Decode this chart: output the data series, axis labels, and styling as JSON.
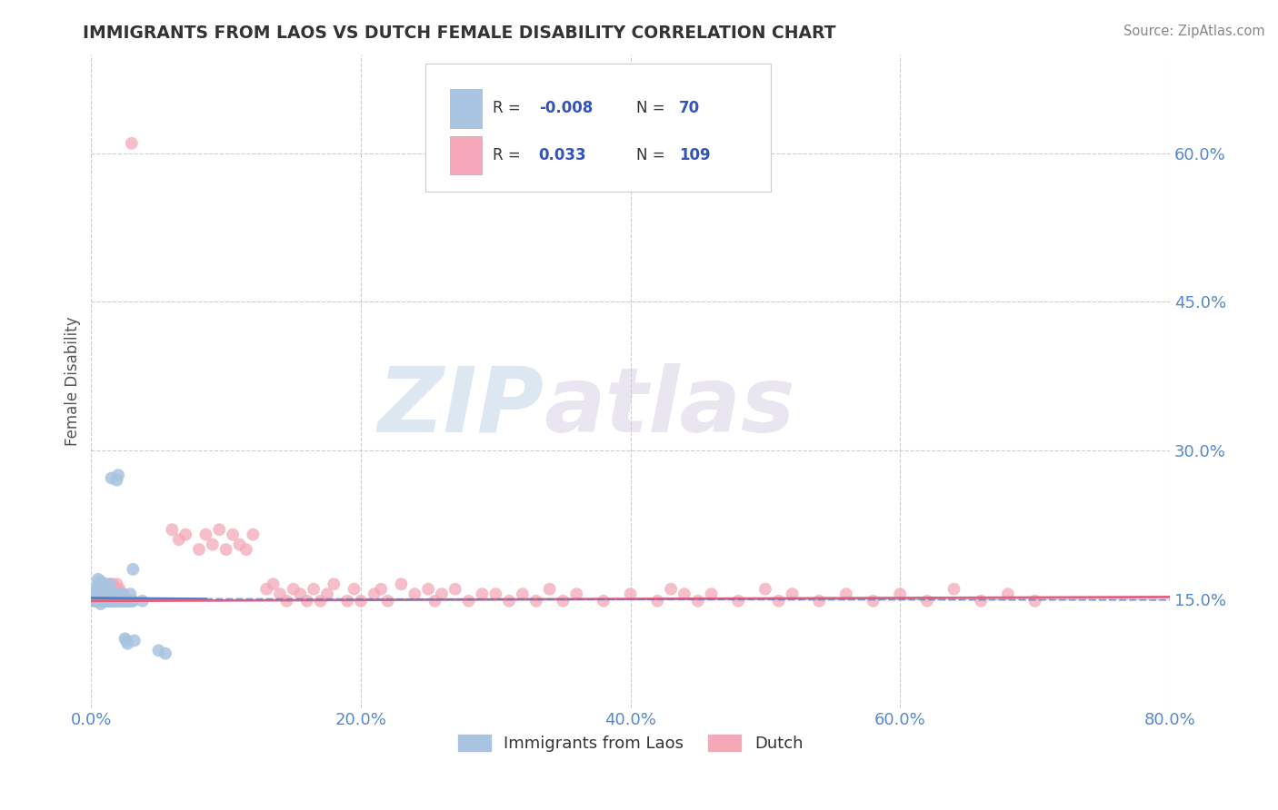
{
  "title": "IMMIGRANTS FROM LAOS VS DUTCH FEMALE DISABILITY CORRELATION CHART",
  "source": "Source: ZipAtlas.com",
  "ylabel": "Female Disability",
  "legend_labels": [
    "Immigrants from Laos",
    "Dutch"
  ],
  "xlim": [
    0.0,
    0.8
  ],
  "ylim": [
    0.04,
    0.7
  ],
  "xticks": [
    0.0,
    0.2,
    0.4,
    0.6,
    0.8
  ],
  "xticklabels": [
    "0.0%",
    "20.0%",
    "40.0%",
    "60.0%",
    "80.0%"
  ],
  "yticks": [
    0.15,
    0.3,
    0.45,
    0.6
  ],
  "yticklabels": [
    "15.0%",
    "30.0%",
    "45.0%",
    "60.0%"
  ],
  "color_blue": "#a8c4e0",
  "color_pink": "#f4a8b8",
  "line_blue": "#4d7fc4",
  "line_pink": "#e06080",
  "watermark_zip": "ZIP",
  "watermark_atlas": "atlas",
  "background_color": "#ffffff",
  "grid_color": "#c8c8c8",
  "title_color": "#333333",
  "axis_label_color": "#555555",
  "tick_label_color": "#5588cc",
  "legend_r_color": "#3355bb",
  "blue_scatter": [
    [
      0.001,
      0.148
    ],
    [
      0.002,
      0.152
    ],
    [
      0.002,
      0.15
    ],
    [
      0.002,
      0.155
    ],
    [
      0.003,
      0.148
    ],
    [
      0.003,
      0.158
    ],
    [
      0.003,
      0.153
    ],
    [
      0.004,
      0.16
    ],
    [
      0.004,
      0.148
    ],
    [
      0.004,
      0.155
    ],
    [
      0.005,
      0.165
    ],
    [
      0.005,
      0.17
    ],
    [
      0.005,
      0.148
    ],
    [
      0.006,
      0.155
    ],
    [
      0.006,
      0.16
    ],
    [
      0.006,
      0.148
    ],
    [
      0.007,
      0.168
    ],
    [
      0.007,
      0.145
    ],
    [
      0.007,
      0.152
    ],
    [
      0.008,
      0.158
    ],
    [
      0.008,
      0.148
    ],
    [
      0.008,
      0.155
    ],
    [
      0.009,
      0.163
    ],
    [
      0.009,
      0.148
    ],
    [
      0.009,
      0.16
    ],
    [
      0.01,
      0.152
    ],
    [
      0.01,
      0.148
    ],
    [
      0.01,
      0.165
    ],
    [
      0.011,
      0.15
    ],
    [
      0.011,
      0.148
    ],
    [
      0.012,
      0.158
    ],
    [
      0.012,
      0.148
    ],
    [
      0.012,
      0.155
    ],
    [
      0.013,
      0.16
    ],
    [
      0.013,
      0.148
    ],
    [
      0.014,
      0.165
    ],
    [
      0.014,
      0.148
    ],
    [
      0.015,
      0.272
    ],
    [
      0.016,
      0.148
    ],
    [
      0.016,
      0.148
    ],
    [
      0.017,
      0.152
    ],
    [
      0.018,
      0.148
    ],
    [
      0.018,
      0.155
    ],
    [
      0.019,
      0.148
    ],
    [
      0.019,
      0.27
    ],
    [
      0.02,
      0.148
    ],
    [
      0.02,
      0.275
    ],
    [
      0.021,
      0.148
    ],
    [
      0.021,
      0.155
    ],
    [
      0.022,
      0.148
    ],
    [
      0.022,
      0.152
    ],
    [
      0.023,
      0.148
    ],
    [
      0.023,
      0.155
    ],
    [
      0.024,
      0.148
    ],
    [
      0.025,
      0.148
    ],
    [
      0.025,
      0.11
    ],
    [
      0.026,
      0.108
    ],
    [
      0.026,
      0.148
    ],
    [
      0.027,
      0.105
    ],
    [
      0.028,
      0.148
    ],
    [
      0.028,
      0.148
    ],
    [
      0.029,
      0.155
    ],
    [
      0.03,
      0.148
    ],
    [
      0.03,
      0.148
    ],
    [
      0.031,
      0.148
    ],
    [
      0.031,
      0.18
    ],
    [
      0.032,
      0.108
    ],
    [
      0.05,
      0.098
    ],
    [
      0.055,
      0.095
    ],
    [
      0.038,
      0.148
    ]
  ],
  "pink_scatter": [
    [
      0.001,
      0.148
    ],
    [
      0.002,
      0.152
    ],
    [
      0.003,
      0.148
    ],
    [
      0.004,
      0.155
    ],
    [
      0.004,
      0.148
    ],
    [
      0.005,
      0.16
    ],
    [
      0.006,
      0.152
    ],
    [
      0.006,
      0.148
    ],
    [
      0.007,
      0.155
    ],
    [
      0.007,
      0.148
    ],
    [
      0.008,
      0.16
    ],
    [
      0.008,
      0.165
    ],
    [
      0.009,
      0.148
    ],
    [
      0.009,
      0.155
    ],
    [
      0.01,
      0.148
    ],
    [
      0.01,
      0.165
    ],
    [
      0.011,
      0.148
    ],
    [
      0.011,
      0.155
    ],
    [
      0.012,
      0.148
    ],
    [
      0.012,
      0.16
    ],
    [
      0.013,
      0.165
    ],
    [
      0.013,
      0.148
    ],
    [
      0.014,
      0.155
    ],
    [
      0.014,
      0.16
    ],
    [
      0.015,
      0.148
    ],
    [
      0.015,
      0.155
    ],
    [
      0.016,
      0.165
    ],
    [
      0.016,
      0.148
    ],
    [
      0.017,
      0.16
    ],
    [
      0.017,
      0.148
    ],
    [
      0.018,
      0.155
    ],
    [
      0.018,
      0.16
    ],
    [
      0.019,
      0.148
    ],
    [
      0.019,
      0.165
    ],
    [
      0.02,
      0.155
    ],
    [
      0.02,
      0.148
    ],
    [
      0.021,
      0.16
    ],
    [
      0.021,
      0.148
    ],
    [
      0.022,
      0.155
    ],
    [
      0.022,
      0.155
    ],
    [
      0.023,
      0.148
    ],
    [
      0.023,
      0.155
    ],
    [
      0.024,
      0.148
    ],
    [
      0.024,
      0.155
    ],
    [
      0.025,
      0.148
    ],
    [
      0.03,
      0.61
    ],
    [
      0.06,
      0.22
    ],
    [
      0.065,
      0.21
    ],
    [
      0.07,
      0.215
    ],
    [
      0.08,
      0.2
    ],
    [
      0.085,
      0.215
    ],
    [
      0.09,
      0.205
    ],
    [
      0.095,
      0.22
    ],
    [
      0.1,
      0.2
    ],
    [
      0.105,
      0.215
    ],
    [
      0.11,
      0.205
    ],
    [
      0.115,
      0.2
    ],
    [
      0.12,
      0.215
    ],
    [
      0.13,
      0.16
    ],
    [
      0.135,
      0.165
    ],
    [
      0.14,
      0.155
    ],
    [
      0.145,
      0.148
    ],
    [
      0.15,
      0.16
    ],
    [
      0.155,
      0.155
    ],
    [
      0.16,
      0.148
    ],
    [
      0.165,
      0.16
    ],
    [
      0.17,
      0.148
    ],
    [
      0.175,
      0.155
    ],
    [
      0.18,
      0.165
    ],
    [
      0.19,
      0.148
    ],
    [
      0.195,
      0.16
    ],
    [
      0.2,
      0.148
    ],
    [
      0.21,
      0.155
    ],
    [
      0.215,
      0.16
    ],
    [
      0.22,
      0.148
    ],
    [
      0.23,
      0.165
    ],
    [
      0.24,
      0.155
    ],
    [
      0.25,
      0.16
    ],
    [
      0.255,
      0.148
    ],
    [
      0.26,
      0.155
    ],
    [
      0.27,
      0.16
    ],
    [
      0.28,
      0.148
    ],
    [
      0.29,
      0.155
    ],
    [
      0.3,
      0.155
    ],
    [
      0.31,
      0.148
    ],
    [
      0.32,
      0.155
    ],
    [
      0.33,
      0.148
    ],
    [
      0.34,
      0.16
    ],
    [
      0.35,
      0.148
    ],
    [
      0.36,
      0.155
    ],
    [
      0.38,
      0.148
    ],
    [
      0.4,
      0.155
    ],
    [
      0.42,
      0.148
    ],
    [
      0.43,
      0.16
    ],
    [
      0.44,
      0.155
    ],
    [
      0.45,
      0.148
    ],
    [
      0.46,
      0.155
    ],
    [
      0.48,
      0.148
    ],
    [
      0.5,
      0.16
    ],
    [
      0.51,
      0.148
    ],
    [
      0.52,
      0.155
    ],
    [
      0.54,
      0.148
    ],
    [
      0.56,
      0.155
    ],
    [
      0.58,
      0.148
    ],
    [
      0.6,
      0.155
    ],
    [
      0.62,
      0.148
    ],
    [
      0.64,
      0.16
    ],
    [
      0.66,
      0.148
    ],
    [
      0.68,
      0.155
    ],
    [
      0.7,
      0.148
    ]
  ],
  "blue_line": {
    "x0": 0.0,
    "x1": 0.085,
    "y0": 0.151,
    "y1": 0.15
  },
  "pink_line": {
    "x0": 0.0,
    "x1": 0.8,
    "y0": 0.148,
    "y1": 0.152
  }
}
